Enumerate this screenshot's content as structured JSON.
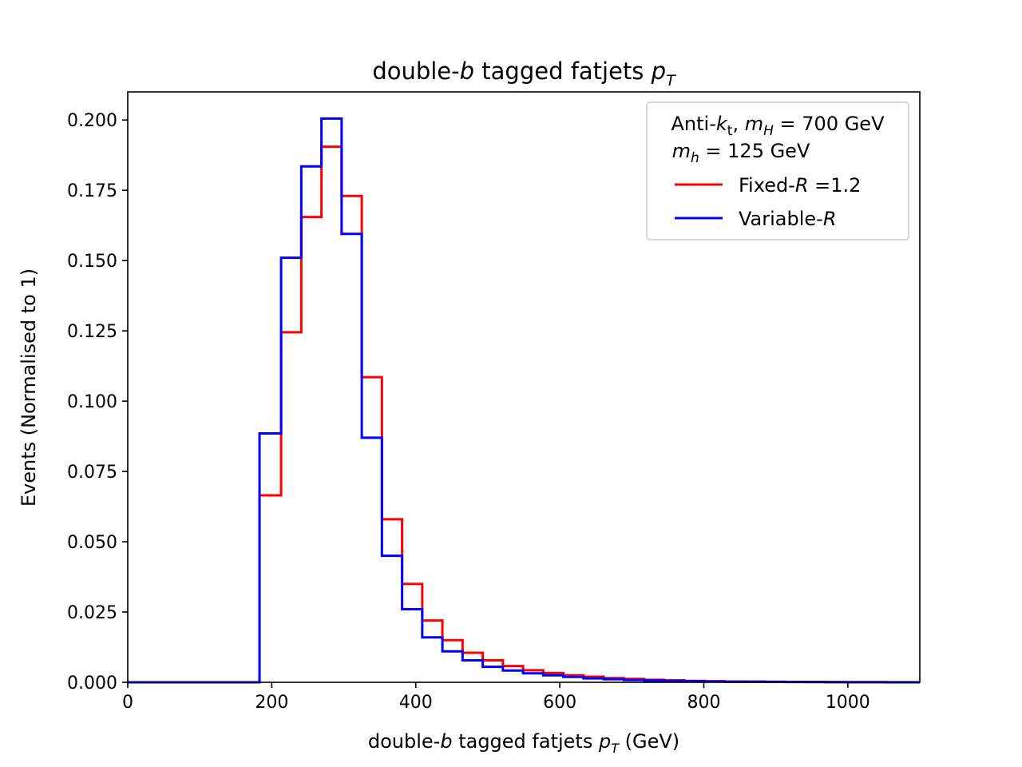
{
  "chart_data": {
    "type": "histogram-step",
    "title": {
      "prefix": "double-",
      "italic": "b",
      "middle": " tagged fatjets ",
      "var": "p",
      "sub": "T"
    },
    "xlabel": {
      "prefix": "double-",
      "italic": "b",
      "middle": " tagged fatjets ",
      "var": "p",
      "sub": "T",
      "suffix": " (GeV)"
    },
    "ylabel": "Events (Normalised to 1)",
    "xlim": [
      0,
      1100
    ],
    "ylim": [
      0,
      0.21
    ],
    "xticks": [
      0,
      200,
      400,
      600,
      800,
      1000
    ],
    "yticks": [
      "0.000",
      "0.025",
      "0.050",
      "0.075",
      "0.100",
      "0.125",
      "0.150",
      "0.175",
      "0.200"
    ],
    "ytick_values": [
      0,
      0.025,
      0.05,
      0.075,
      0.1,
      0.125,
      0.15,
      0.175,
      0.2
    ],
    "bin_edges": [
      0,
      30,
      60,
      90,
      120,
      150,
      183,
      213,
      241,
      269,
      297,
      325,
      353,
      381,
      409,
      437,
      465,
      493,
      521,
      549,
      577,
      605,
      633,
      661,
      689,
      717,
      745,
      773,
      801,
      829,
      857,
      885,
      913,
      941,
      969,
      997,
      1025,
      1053,
      1081,
      1100
    ],
    "series": [
      {
        "name": "Fixed-R =1.2",
        "color": "#ff0000",
        "values": [
          0,
          0,
          0,
          0,
          0,
          0,
          0.0665,
          0.1245,
          0.1655,
          0.1905,
          0.173,
          0.1085,
          0.058,
          0.035,
          0.022,
          0.015,
          0.0105,
          0.0078,
          0.0058,
          0.0043,
          0.0033,
          0.0025,
          0.002,
          0.0015,
          0.0012,
          0.0009,
          0.0007,
          0.0005,
          0.0004,
          0.0003,
          0.00025,
          0.0002,
          0.00015,
          0.0001,
          0.0001,
          8e-05,
          6e-05,
          4e-05,
          3e-05
        ]
      },
      {
        "name": "Variable-R",
        "color": "#0000ff",
        "values": [
          0,
          0,
          0,
          0,
          0,
          0,
          0.0885,
          0.151,
          0.1835,
          0.2005,
          0.1595,
          0.087,
          0.045,
          0.026,
          0.016,
          0.011,
          0.0078,
          0.0055,
          0.0042,
          0.0032,
          0.0025,
          0.0019,
          0.0014,
          0.0011,
          0.0008,
          0.0006,
          0.0005,
          0.0004,
          0.0003,
          0.0002,
          0.0002,
          0.00015,
          0.0001,
          0.0001,
          5e-05,
          3e-05,
          2e-05,
          1e-05,
          1e-05
        ]
      }
    ],
    "legend": {
      "placement": "top-right",
      "header_line1": {
        "text1": "Anti-",
        "italic1": "k",
        "sub1": "t",
        "text2": ", ",
        "italic2": "m",
        "sub2": "H",
        "text3": " = 700 GeV"
      },
      "header_line2": {
        "italic": "m",
        "sub": "h",
        "text": " = 125 GeV"
      },
      "entries": [
        {
          "prefix": "Fixed-",
          "italic": "R",
          "suffix": " =1.2",
          "color": "#ff0000"
        },
        {
          "prefix": "Variable-",
          "italic": "R",
          "suffix": "",
          "color": "#0000ff"
        }
      ]
    },
    "grid": false
  }
}
